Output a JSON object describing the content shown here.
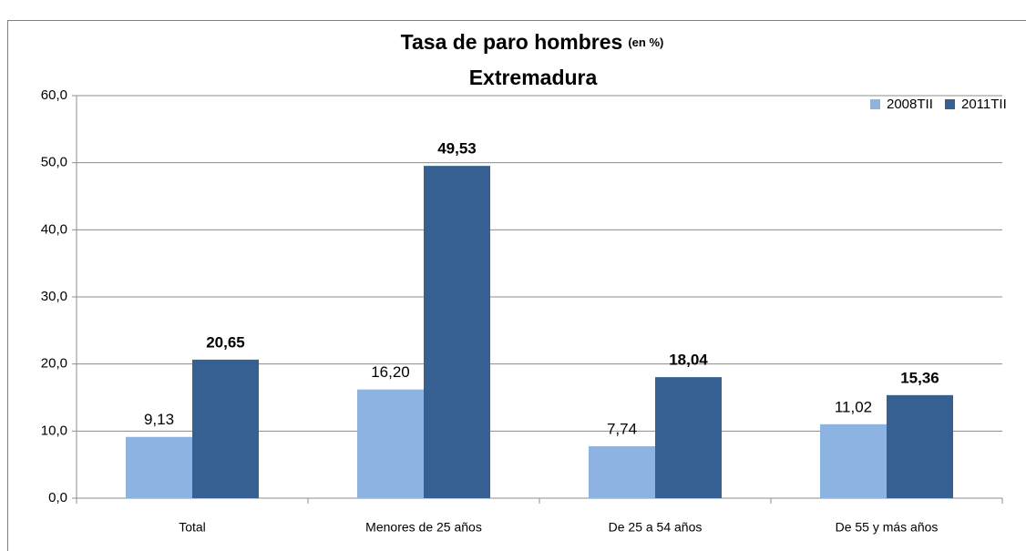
{
  "chart_data": {
    "type": "bar",
    "title": "Tasa de paro hombres",
    "title_unit": "(en %)",
    "subtitle": "Extremadura",
    "categories": [
      "Total",
      "Menores de 25 años",
      "De 25 a 54 años",
      "De 55 y más  años"
    ],
    "series": [
      {
        "name": "2008TII",
        "color": "#8db3e2",
        "values": [
          9.13,
          16.2,
          7.74,
          11.02
        ],
        "value_labels": [
          "9,13",
          "16,20",
          "7,74",
          "11,02"
        ]
      },
      {
        "name": "2011TII",
        "color": "#376092",
        "values": [
          20.65,
          49.53,
          18.04,
          15.36
        ],
        "value_labels": [
          "20,65",
          "49,53",
          "18,04",
          "15,36"
        ]
      }
    ],
    "ylim": [
      0,
      60
    ],
    "yticks": [
      {
        "value": 0,
        "label": "0,0"
      },
      {
        "value": 10,
        "label": "10,0"
      },
      {
        "value": 20,
        "label": "20,0"
      },
      {
        "value": 30,
        "label": "30,0"
      },
      {
        "value": 40,
        "label": "40,0"
      },
      {
        "value": 50,
        "label": "50,0"
      },
      {
        "value": 60,
        "label": "60,0"
      }
    ],
    "grid": true,
    "legend": "top-right"
  }
}
